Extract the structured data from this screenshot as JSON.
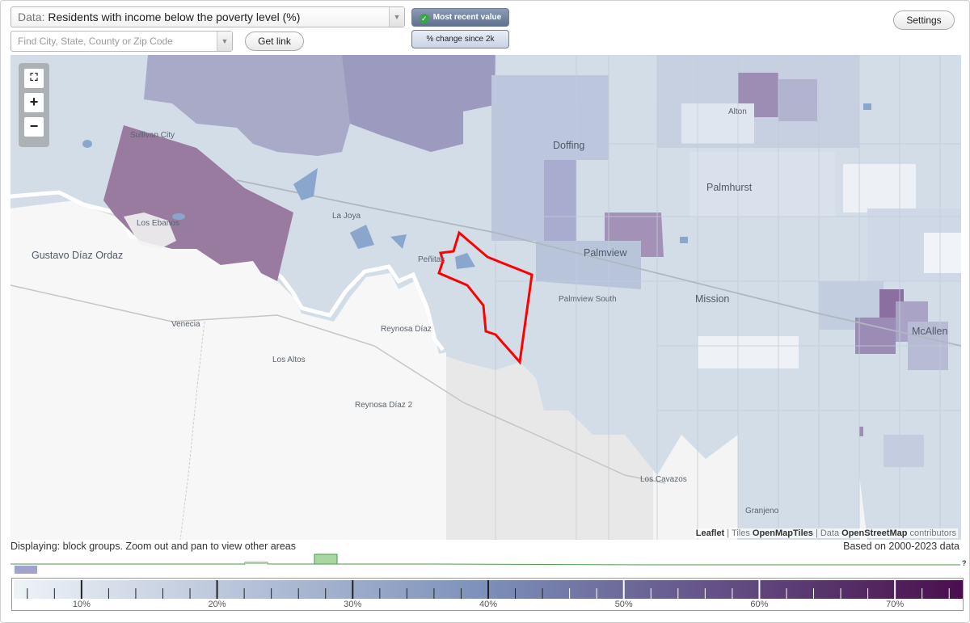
{
  "toolbar": {
    "data_prefix": "Data:",
    "data_value": "Residents with income below the poverty level (%)",
    "search_placeholder": "Find City, State, County or Zip Code",
    "get_link_label": "Get link",
    "mode_recent_label": "Most recent value",
    "mode_change_label": "% change since 2k",
    "settings_label": "Settings",
    "dropdown_icon": "chevron-down-icon",
    "check_icon": "check-icon"
  },
  "map": {
    "places": [
      {
        "name": "Sullivan City",
        "size": "sm"
      },
      {
        "name": "Los Ebanos",
        "size": "sm"
      },
      {
        "name": "Gustavo Díaz Ordaz",
        "size": "lg"
      },
      {
        "name": "La Joya",
        "size": "sm"
      },
      {
        "name": "Peñitas",
        "size": "sm"
      },
      {
        "name": "Doffing",
        "size": "lg"
      },
      {
        "name": "Alton",
        "size": "sm"
      },
      {
        "name": "Palmhurst",
        "size": "lg"
      },
      {
        "name": "Palmview",
        "size": "lg"
      },
      {
        "name": "Palmview South",
        "size": "sm"
      },
      {
        "name": "Mission",
        "size": "lg"
      },
      {
        "name": "McAllen",
        "size": "lg"
      },
      {
        "name": "Venecia",
        "size": "sm"
      },
      {
        "name": "Reynosa Díaz",
        "size": "sm"
      },
      {
        "name": "Los Altos",
        "size": "sm"
      },
      {
        "name": "Reynosa Díaz 2",
        "size": "sm"
      },
      {
        "name": "Los Cavazos",
        "size": "sm"
      },
      {
        "name": "Granjeno",
        "size": "sm"
      }
    ],
    "zoom_fit_icon": "fullscreen-icon",
    "zoom_in_label": "+",
    "zoom_out_label": "−",
    "attribution": {
      "leaflet": "Leaflet",
      "tiles_prefix": "| Tiles",
      "tiles": "OpenMapTiles",
      "data_prefix": "| Data",
      "data": "OpenStreetMap",
      "suffix": "contributors"
    }
  },
  "footer": {
    "status": "Displaying: block groups. Zoom out and pan to view other areas",
    "based_on": "Based on 2000-2023 data",
    "histogram_unknown": "?"
  },
  "legend": {
    "min": 5,
    "max": 75,
    "major_ticks": [
      10,
      20,
      30,
      40,
      50,
      60,
      70
    ],
    "labels": [
      "10%",
      "20%",
      "30%",
      "40%",
      "50%",
      "60%",
      "70%"
    ],
    "color_start": "#eef3f7",
    "color_mid": "#7b8fb8",
    "color_end": "#4a0e4e"
  },
  "colors": {
    "highlight": "#ff0000",
    "histogram_line": "#4a9a4a",
    "histogram_fill": "#a8d8a0"
  }
}
